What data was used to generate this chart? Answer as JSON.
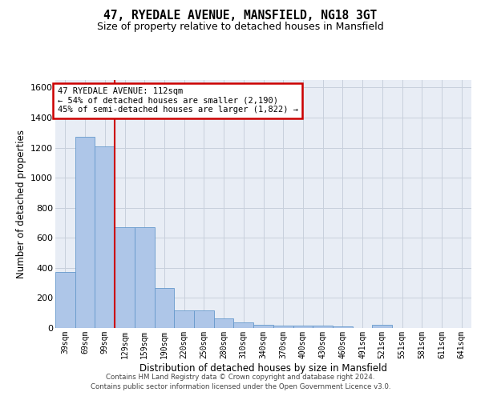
{
  "title": "47, RYEDALE AVENUE, MANSFIELD, NG18 3GT",
  "subtitle": "Size of property relative to detached houses in Mansfield",
  "xlabel": "Distribution of detached houses by size in Mansfield",
  "ylabel": "Number of detached properties",
  "footer1": "Contains HM Land Registry data © Crown copyright and database right 2024.",
  "footer2": "Contains public sector information licensed under the Open Government Licence v3.0.",
  "annotation_title": "47 RYEDALE AVENUE: 112sqm",
  "annotation_line1": "← 54% of detached houses are smaller (2,190)",
  "annotation_line2": "45% of semi-detached houses are larger (1,822) →",
  "categories": [
    "39sqm",
    "69sqm",
    "99sqm",
    "129sqm",
    "159sqm",
    "190sqm",
    "220sqm",
    "250sqm",
    "280sqm",
    "310sqm",
    "340sqm",
    "370sqm",
    "400sqm",
    "430sqm",
    "460sqm",
    "491sqm",
    "521sqm",
    "551sqm",
    "581sqm",
    "611sqm",
    "641sqm"
  ],
  "values": [
    370,
    1270,
    1210,
    670,
    670,
    265,
    115,
    115,
    65,
    35,
    20,
    15,
    15,
    15,
    10,
    0,
    20,
    0,
    0,
    0,
    0
  ],
  "bar_color": "#aec6e8",
  "bar_edge_color": "#6699cc",
  "vline_color": "#cc0000",
  "vline_x": 2.5,
  "annotation_box_color": "#cc0000",
  "ylim": [
    0,
    1650
  ],
  "yticks": [
    0,
    200,
    400,
    600,
    800,
    1000,
    1200,
    1400,
    1600
  ],
  "grid_color": "#c8d0dc",
  "plot_bg_color": "#e8edf5"
}
